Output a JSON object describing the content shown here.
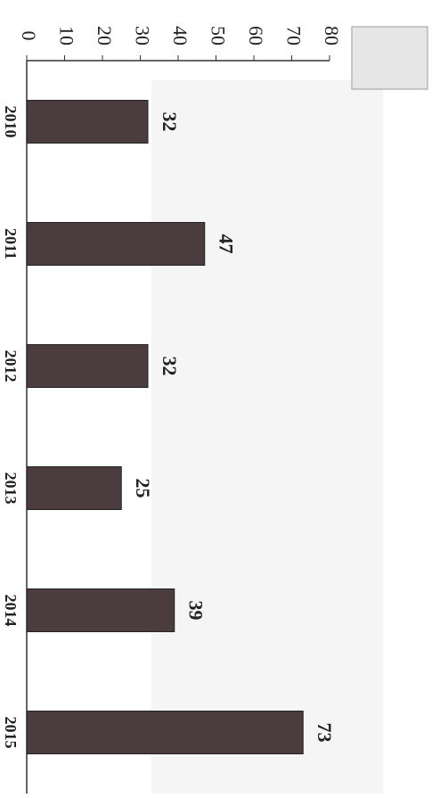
{
  "chart_data": {
    "type": "bar",
    "orientation": "rotated",
    "categories": [
      "2010",
      "2011",
      "2012",
      "2013",
      "2014",
      "2015"
    ],
    "values": [
      32,
      47,
      32,
      25,
      39,
      73
    ],
    "color": "#4b3c40",
    "ylim": [
      0,
      80
    ],
    "yticks": [
      0,
      10,
      20,
      30,
      40,
      50,
      60,
      70,
      80
    ]
  }
}
